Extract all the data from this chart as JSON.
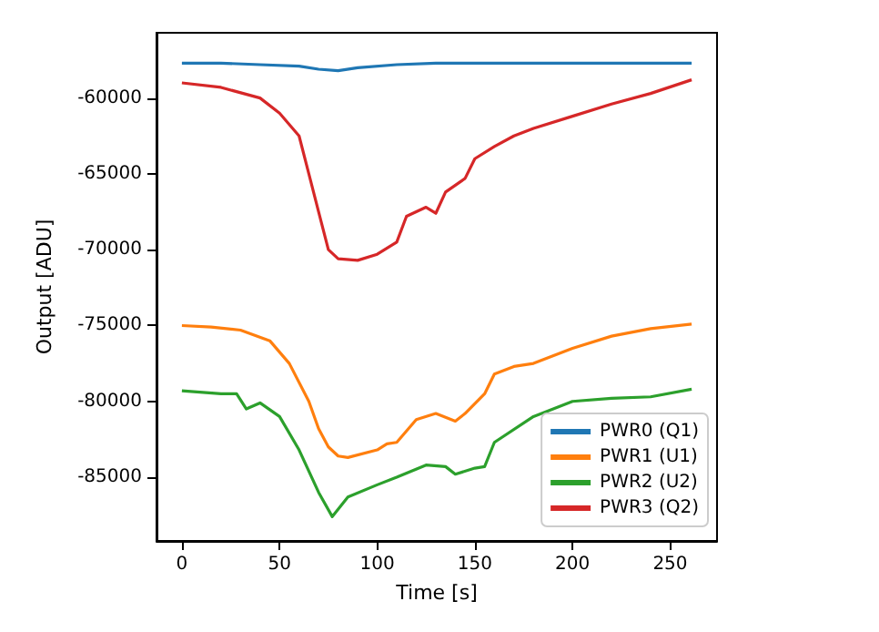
{
  "chart_data": {
    "type": "line",
    "xlabel": "Time [s]",
    "ylabel": "Output [ADU]",
    "xlim": [
      -13,
      274
    ],
    "xticks": [
      0,
      50,
      100,
      150,
      200,
      250
    ],
    "ylim": [
      -89200,
      -55700
    ],
    "yticks": [
      -85000,
      -80000,
      -75000,
      -70000,
      -65000,
      -60000
    ],
    "grid": false,
    "legend": "bottom right",
    "series": [
      {
        "name": "PWR0 (Q1)",
        "color": "#1f77b4",
        "x": [
          0,
          20,
          40,
          60,
          70,
          80,
          90,
          110,
          130,
          150,
          170,
          190,
          210,
          230,
          250,
          261
        ],
        "values": [
          -57700,
          -57700,
          -57800,
          -57900,
          -58100,
          -58200,
          -58000,
          -57800,
          -57700,
          -57700,
          -57700,
          -57700,
          -57700,
          -57700,
          -57700,
          -57700
        ]
      },
      {
        "name": "PWR1 (U1)",
        "color": "#ff7f0e",
        "x": [
          0,
          15,
          30,
          45,
          55,
          65,
          70,
          75,
          80,
          85,
          100,
          105,
          110,
          120,
          130,
          140,
          145,
          155,
          160,
          170,
          180,
          200,
          220,
          240,
          261
        ],
        "values": [
          -75000,
          -75100,
          -75300,
          -76000,
          -77500,
          -80000,
          -81800,
          -83000,
          -83600,
          -83700,
          -83200,
          -82800,
          -82700,
          -81200,
          -80800,
          -81300,
          -80800,
          -79500,
          -78200,
          -77700,
          -77500,
          -76500,
          -75700,
          -75200,
          -74900
        ]
      },
      {
        "name": "PWR2 (U2)",
        "color": "#2ca02c",
        "x": [
          0,
          20,
          28,
          33,
          40,
          50,
          60,
          70,
          77,
          85,
          100,
          110,
          125,
          135,
          140,
          150,
          155,
          160,
          180,
          200,
          220,
          240,
          261
        ],
        "values": [
          -79300,
          -79500,
          -79500,
          -80500,
          -80100,
          -81000,
          -83200,
          -86000,
          -87600,
          -86300,
          -85500,
          -85000,
          -84200,
          -84300,
          -84800,
          -84400,
          -84300,
          -82700,
          -81000,
          -80000,
          -79800,
          -79700,
          -79200
        ]
      },
      {
        "name": "PWR3 (Q2)",
        "color": "#d62728",
        "x": [
          0,
          20,
          40,
          50,
          60,
          65,
          70,
          75,
          80,
          90,
          100,
          110,
          115,
          125,
          130,
          135,
          145,
          150,
          160,
          170,
          180,
          200,
          220,
          240,
          261
        ],
        "values": [
          -59000,
          -59300,
          -60000,
          -61000,
          -62500,
          -65000,
          -67500,
          -70000,
          -70600,
          -70700,
          -70300,
          -69500,
          -67800,
          -67200,
          -67600,
          -66200,
          -65300,
          -64000,
          -63200,
          -62500,
          -62000,
          -61200,
          -60400,
          -59700,
          -58800
        ]
      }
    ]
  }
}
